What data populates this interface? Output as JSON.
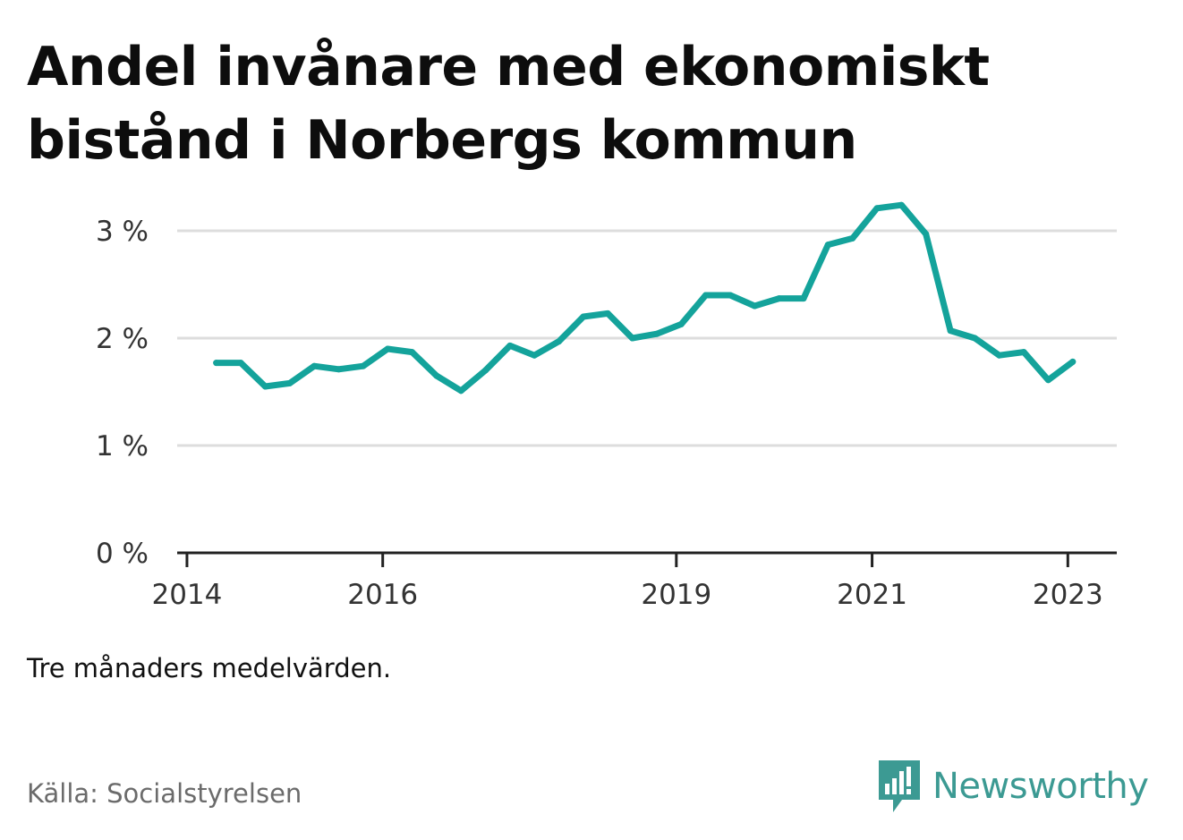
{
  "header": {
    "title": "Andel invånare med ekonomiskt bistånd i Norbergs kommun"
  },
  "footer": {
    "note": "Tre månaders medelvärden.",
    "source": "Källa: Socialstyrelsen",
    "brand": "Newsworthy"
  },
  "colors": {
    "line": "#14a39b",
    "grid": "#dddddd",
    "axis": "#222222",
    "brand": "#3c9a93"
  },
  "chart_data": {
    "type": "line",
    "title": "Andel invånare med ekonomiskt bistånd i Norbergs kommun",
    "xlabel": "",
    "ylabel": "",
    "x_unit": "year",
    "xlim": [
      2013.9,
      2023.5
    ],
    "ylim": [
      0,
      3.4
    ],
    "x_ticks": [
      {
        "value": 2014,
        "label": "2014"
      },
      {
        "value": 2016,
        "label": "2016"
      },
      {
        "value": 2019,
        "label": "2019"
      },
      {
        "value": 2021,
        "label": "2021"
      },
      {
        "value": 2023,
        "label": "2023"
      }
    ],
    "y_ticks": [
      {
        "value": 0,
        "label": "0 %"
      },
      {
        "value": 1,
        "label": "1 %"
      },
      {
        "value": 2,
        "label": "2 %"
      },
      {
        "value": 3,
        "label": "3 %"
      }
    ],
    "grid": true,
    "legend": "none",
    "series": [
      {
        "x": [
          2014.3,
          2014.55,
          2014.8,
          2015.05,
          2015.3,
          2015.55,
          2015.8,
          2016.05,
          2016.3,
          2016.55,
          2016.8,
          2017.05,
          2017.3,
          2017.55,
          2017.8,
          2018.05,
          2018.3,
          2018.55,
          2018.8,
          2019.05,
          2019.3,
          2019.55,
          2019.8,
          2020.05,
          2020.3,
          2020.55,
          2020.8,
          2021.05,
          2021.3,
          2021.55,
          2021.8,
          2022.05,
          2022.3,
          2022.55,
          2022.8,
          2023.05
        ],
        "values": [
          1.77,
          1.77,
          1.55,
          1.58,
          1.74,
          1.71,
          1.74,
          1.9,
          1.87,
          1.65,
          1.51,
          1.7,
          1.93,
          1.84,
          1.97,
          2.2,
          2.23,
          2.0,
          2.04,
          2.13,
          2.4,
          2.4,
          2.3,
          2.37,
          2.37,
          2.87,
          2.93,
          3.21,
          3.24,
          2.97,
          2.07,
          2.0,
          1.84,
          1.87,
          1.61,
          1.78
        ]
      }
    ]
  }
}
